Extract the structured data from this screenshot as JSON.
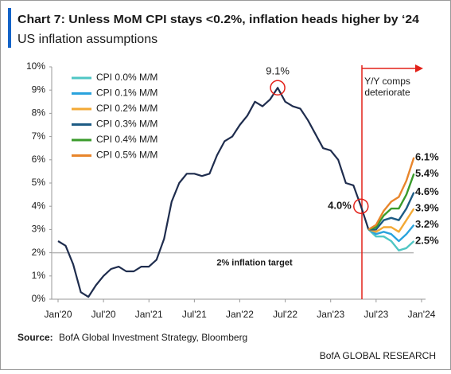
{
  "chart_data": {
    "type": "line",
    "title": "Chart 7: Unless MoM CPI stays <0.2%, inflation heads higher by ‘24",
    "subtitle": "US inflation assumptions",
    "categories": [
      "Jan'20",
      null,
      null,
      null,
      null,
      null,
      "Jul'20",
      null,
      null,
      null,
      null,
      null,
      "Jan'21",
      null,
      null,
      null,
      null,
      null,
      "Jul'21",
      null,
      null,
      null,
      null,
      null,
      "Jan'22",
      null,
      null,
      null,
      null,
      null,
      "Jul'22",
      null,
      null,
      null,
      null,
      null,
      "Jan'23",
      null,
      null,
      null,
      null,
      null,
      "Jul'23",
      null,
      null,
      null,
      null,
      null,
      "Jan'24"
    ],
    "ylim": [
      0,
      10
    ],
    "yticks": [
      {
        "value": 0,
        "label": "0%"
      },
      {
        "value": 1,
        "label": "1%"
      },
      {
        "value": 2,
        "label": "2%"
      },
      {
        "value": 3,
        "label": "3%"
      },
      {
        "value": 4,
        "label": "4%"
      },
      {
        "value": 5,
        "label": "5%"
      },
      {
        "value": 6,
        "label": "6%"
      },
      {
        "value": 7,
        "label": "7%"
      },
      {
        "value": 8,
        "label": "8%"
      },
      {
        "value": 9,
        "label": "9%"
      },
      {
        "value": 10,
        "label": "10%"
      }
    ],
    "series": [
      {
        "color": "#1f2d4e",
        "values": [
          2.5,
          2.3,
          1.5,
          0.3,
          0.1,
          0.6,
          1.0,
          1.3,
          1.4,
          1.2,
          1.2,
          1.4,
          1.4,
          1.7,
          2.6,
          4.2,
          5.0,
          5.4,
          5.4,
          5.3,
          5.4,
          6.2,
          6.8,
          7.0,
          7.5,
          7.9,
          8.5,
          8.3,
          8.6,
          9.1,
          8.5,
          8.3,
          8.2,
          7.7,
          7.1,
          6.5,
          6.4,
          6.0,
          5.0,
          4.9,
          4.0,
          3.0,
          null,
          null,
          null,
          null,
          null,
          null,
          null
        ],
        "value_labels": [
          null,
          null,
          null,
          null,
          null,
          null,
          null,
          null,
          null,
          null,
          null,
          null,
          null,
          null,
          null,
          null,
          null,
          null,
          null,
          null,
          null,
          null,
          null,
          null,
          null,
          null,
          null,
          null,
          null,
          "9.1%",
          null,
          null,
          null,
          null,
          null,
          null,
          null,
          null,
          null,
          null,
          "4.0%",
          null,
          null,
          null,
          null,
          null,
          null,
          null,
          null
        ]
      },
      {
        "name": "CPI 0.0% M/M",
        "color": "#4fc6c4",
        "values": [
          null,
          null,
          null,
          null,
          null,
          null,
          null,
          null,
          null,
          null,
          null,
          null,
          null,
          null,
          null,
          null,
          null,
          null,
          null,
          null,
          null,
          null,
          null,
          null,
          null,
          null,
          null,
          null,
          null,
          null,
          null,
          null,
          null,
          null,
          null,
          null,
          null,
          null,
          null,
          null,
          null,
          3.0,
          2.7,
          2.7,
          2.5,
          2.1,
          2.2,
          2.5,
          null
        ],
        "value_labels": [
          null,
          null,
          null,
          null,
          null,
          null,
          null,
          null,
          null,
          null,
          null,
          null,
          null,
          null,
          null,
          null,
          null,
          null,
          null,
          null,
          null,
          null,
          null,
          null,
          null,
          null,
          null,
          null,
          null,
          null,
          null,
          null,
          null,
          null,
          null,
          null,
          null,
          null,
          null,
          null,
          null,
          null,
          null,
          null,
          null,
          null,
          null,
          "2.5%",
          null
        ]
      },
      {
        "name": "CPI 0.1% M/M",
        "color": "#2aa3dd",
        "values": [
          null,
          null,
          null,
          null,
          null,
          null,
          null,
          null,
          null,
          null,
          null,
          null,
          null,
          null,
          null,
          null,
          null,
          null,
          null,
          null,
          null,
          null,
          null,
          null,
          null,
          null,
          null,
          null,
          null,
          null,
          null,
          null,
          null,
          null,
          null,
          null,
          null,
          null,
          null,
          null,
          null,
          3.0,
          2.8,
          2.9,
          2.8,
          2.5,
          2.8,
          3.2,
          null
        ],
        "value_labels": [
          null,
          null,
          null,
          null,
          null,
          null,
          null,
          null,
          null,
          null,
          null,
          null,
          null,
          null,
          null,
          null,
          null,
          null,
          null,
          null,
          null,
          null,
          null,
          null,
          null,
          null,
          null,
          null,
          null,
          null,
          null,
          null,
          null,
          null,
          null,
          null,
          null,
          null,
          null,
          null,
          null,
          null,
          null,
          null,
          null,
          null,
          null,
          "3.2%",
          null
        ]
      },
      {
        "name": "CPI 0.2% M/M",
        "color": "#f3a935",
        "values": [
          null,
          null,
          null,
          null,
          null,
          null,
          null,
          null,
          null,
          null,
          null,
          null,
          null,
          null,
          null,
          null,
          null,
          null,
          null,
          null,
          null,
          null,
          null,
          null,
          null,
          null,
          null,
          null,
          null,
          null,
          null,
          null,
          null,
          null,
          null,
          null,
          null,
          null,
          null,
          null,
          null,
          3.0,
          2.9,
          3.1,
          3.1,
          2.9,
          3.4,
          3.9,
          null
        ],
        "value_labels": [
          null,
          null,
          null,
          null,
          null,
          null,
          null,
          null,
          null,
          null,
          null,
          null,
          null,
          null,
          null,
          null,
          null,
          null,
          null,
          null,
          null,
          null,
          null,
          null,
          null,
          null,
          null,
          null,
          null,
          null,
          null,
          null,
          null,
          null,
          null,
          null,
          null,
          null,
          null,
          null,
          null,
          null,
          null,
          null,
          null,
          null,
          null,
          "3.9%",
          null
        ]
      },
      {
        "name": "CPI 0.3% M/M",
        "color": "#1d5b84",
        "values": [
          null,
          null,
          null,
          null,
          null,
          null,
          null,
          null,
          null,
          null,
          null,
          null,
          null,
          null,
          null,
          null,
          null,
          null,
          null,
          null,
          null,
          null,
          null,
          null,
          null,
          null,
          null,
          null,
          null,
          null,
          null,
          null,
          null,
          null,
          null,
          null,
          null,
          null,
          null,
          null,
          null,
          3.0,
          3.0,
          3.4,
          3.5,
          3.4,
          3.9,
          4.6,
          null
        ],
        "value_labels": [
          null,
          null,
          null,
          null,
          null,
          null,
          null,
          null,
          null,
          null,
          null,
          null,
          null,
          null,
          null,
          null,
          null,
          null,
          null,
          null,
          null,
          null,
          null,
          null,
          null,
          null,
          null,
          null,
          null,
          null,
          null,
          null,
          null,
          null,
          null,
          null,
          null,
          null,
          null,
          null,
          null,
          null,
          null,
          null,
          null,
          null,
          null,
          "4.6%",
          null
        ]
      },
      {
        "name": "CPI 0.4% M/M",
        "color": "#3a9b2b",
        "values": [
          null,
          null,
          null,
          null,
          null,
          null,
          null,
          null,
          null,
          null,
          null,
          null,
          null,
          null,
          null,
          null,
          null,
          null,
          null,
          null,
          null,
          null,
          null,
          null,
          null,
          null,
          null,
          null,
          null,
          null,
          null,
          null,
          null,
          null,
          null,
          null,
          null,
          null,
          null,
          null,
          null,
          3.0,
          3.1,
          3.6,
          3.9,
          3.9,
          4.5,
          5.4,
          null
        ],
        "value_labels": [
          null,
          null,
          null,
          null,
          null,
          null,
          null,
          null,
          null,
          null,
          null,
          null,
          null,
          null,
          null,
          null,
          null,
          null,
          null,
          null,
          null,
          null,
          null,
          null,
          null,
          null,
          null,
          null,
          null,
          null,
          null,
          null,
          null,
          null,
          null,
          null,
          null,
          null,
          null,
          null,
          null,
          null,
          null,
          null,
          null,
          null,
          null,
          "5.4%",
          null
        ]
      },
      {
        "name": "CPI 0.5% M/M",
        "color": "#e8852b",
        "values": [
          null,
          null,
          null,
          null,
          null,
          null,
          null,
          null,
          null,
          null,
          null,
          null,
          null,
          null,
          null,
          null,
          null,
          null,
          null,
          null,
          null,
          null,
          null,
          null,
          null,
          null,
          null,
          null,
          null,
          null,
          null,
          null,
          null,
          null,
          null,
          null,
          null,
          null,
          null,
          null,
          null,
          3.0,
          3.2,
          3.8,
          4.2,
          4.4,
          5.1,
          6.1,
          null
        ],
        "value_labels": [
          null,
          null,
          null,
          null,
          null,
          null,
          null,
          null,
          null,
          null,
          null,
          null,
          null,
          null,
          null,
          null,
          null,
          null,
          null,
          null,
          null,
          null,
          null,
          null,
          null,
          null,
          null,
          null,
          null,
          null,
          null,
          null,
          null,
          null,
          null,
          null,
          null,
          null,
          null,
          null,
          null,
          null,
          null,
          null,
          null,
          null,
          null,
          "6.1%",
          null
        ]
      }
    ],
    "target": {
      "value": 2,
      "label": "2% inflation target"
    },
    "annotation": {
      "lines": [
        "Y/Y comps",
        "deteriorate"
      ],
      "color": "#e32119"
    },
    "legend": "upper left",
    "source_label": "Source:",
    "source_text": "BofA Global Investment Strategy, Bloomberg",
    "brand": "BofA GLOBAL RESEARCH"
  }
}
